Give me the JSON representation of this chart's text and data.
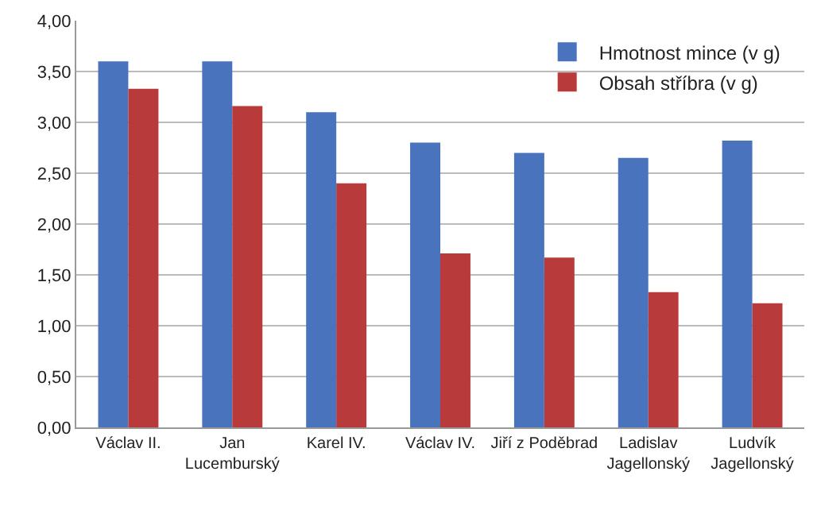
{
  "chart_data": {
    "type": "bar",
    "categories": [
      "Václav II.",
      "Jan\nLucemburský",
      "Karel IV.",
      "Václav IV.",
      "Jiří z Poděbrad",
      "Ladislav\nJagellonský",
      "Ludvík\nJagellonský"
    ],
    "series": [
      {
        "name": "Hmotnost mince (v g)",
        "color": "#4a73be",
        "values": [
          3.6,
          3.6,
          3.1,
          2.8,
          2.7,
          2.65,
          2.82
        ]
      },
      {
        "name": "Obsah stříbra (v g)",
        "color": "#b93a3a",
        "values": [
          3.33,
          3.16,
          2.4,
          1.71,
          1.67,
          1.33,
          1.22
        ]
      }
    ],
    "ylim": [
      0,
      4
    ],
    "yticks": [
      {
        "value": 0,
        "label": "0,00"
      },
      {
        "value": 0.5,
        "label": "0,50"
      },
      {
        "value": 1,
        "label": "1,00"
      },
      {
        "value": 1.5,
        "label": "1,50"
      },
      {
        "value": 2,
        "label": "2,00"
      },
      {
        "value": 2.5,
        "label": "2,50"
      },
      {
        "value": 3,
        "label": "3,00"
      },
      {
        "value": 3.5,
        "label": "3,50"
      },
      {
        "value": 4,
        "label": "4,00"
      }
    ],
    "grid": "y",
    "legend": "top right"
  }
}
